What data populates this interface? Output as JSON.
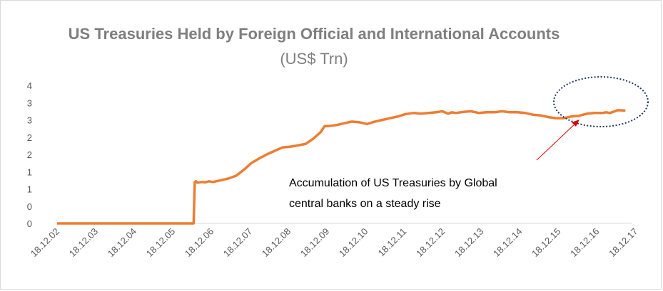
{
  "colors": {
    "series": "#ED7D31",
    "axis": "#d9d9d9",
    "ellipse": "#1F3864",
    "arrow": "#e00000"
  },
  "chart_data": {
    "type": "line",
    "title": "US Treasuries Held by Foreign Official and International Accounts",
    "title_unit": "(US$ Trn)",
    "xlabel": "",
    "ylabel": "",
    "y_tick_labels": [
      "0",
      "0",
      "1",
      "1",
      "2",
      "2",
      "3",
      "3",
      "4"
    ],
    "ylim": [
      0,
      4
    ],
    "grid": false,
    "legend": "none",
    "x_tick_labels": [
      "18.12.02",
      "18.12.03",
      "18.12.04",
      "18.12.05",
      "18.12.06",
      "18.12.07",
      "18.12.08",
      "18.12.09",
      "18.12.10",
      "18.12.11",
      "18.12.12",
      "18.12.13",
      "18.12.14",
      "18.12.15",
      "18.12.16",
      "18.12.17"
    ],
    "series": [
      {
        "x": [
          2002.96,
          2006.0,
          2006.5,
          2006.53,
          2006.56,
          2006.6,
          2006.7,
          2006.8,
          2006.9,
          2007.0,
          2007.2,
          2007.4,
          2007.6,
          2007.8,
          2008.0,
          2008.2,
          2008.4,
          2008.6,
          2008.8,
          2009.0,
          2009.2,
          2009.4,
          2009.6,
          2009.8,
          2009.9,
          2010.0,
          2010.2,
          2010.4,
          2010.6,
          2010.8,
          2011.0,
          2011.2,
          2011.4,
          2011.6,
          2011.8,
          2012.0,
          2012.2,
          2012.4,
          2012.6,
          2012.8,
          2012.95,
          2013.1,
          2013.2,
          2013.3,
          2013.5,
          2013.7,
          2013.9,
          2014.1,
          2014.3,
          2014.5,
          2014.7,
          2014.9,
          2015.1,
          2015.3,
          2015.5,
          2015.7,
          2015.9,
          2016.1,
          2016.3,
          2016.5,
          2016.7,
          2016.9,
          2017.1,
          2017.2,
          2017.3,
          2017.5,
          2017.7
        ],
        "y": [
          0.0,
          0.0,
          0.0,
          1.2,
          1.22,
          1.18,
          1.2,
          1.19,
          1.22,
          1.2,
          1.25,
          1.3,
          1.38,
          1.55,
          1.75,
          1.88,
          2.0,
          2.1,
          2.2,
          2.22,
          2.26,
          2.3,
          2.45,
          2.65,
          2.82,
          2.82,
          2.85,
          2.9,
          2.95,
          2.93,
          2.88,
          2.95,
          3.0,
          3.05,
          3.1,
          3.17,
          3.2,
          3.18,
          3.2,
          3.22,
          3.25,
          3.18,
          3.22,
          3.2,
          3.23,
          3.25,
          3.2,
          3.22,
          3.22,
          3.25,
          3.22,
          3.22,
          3.2,
          3.15,
          3.13,
          3.08,
          3.05,
          3.05,
          3.1,
          3.12,
          3.18,
          3.2,
          3.2,
          3.22,
          3.2,
          3.28,
          3.27
        ]
      }
    ],
    "annotation": [
      "Accumulation of US Treasuries by Global",
      "central banks on a steady rise"
    ]
  }
}
